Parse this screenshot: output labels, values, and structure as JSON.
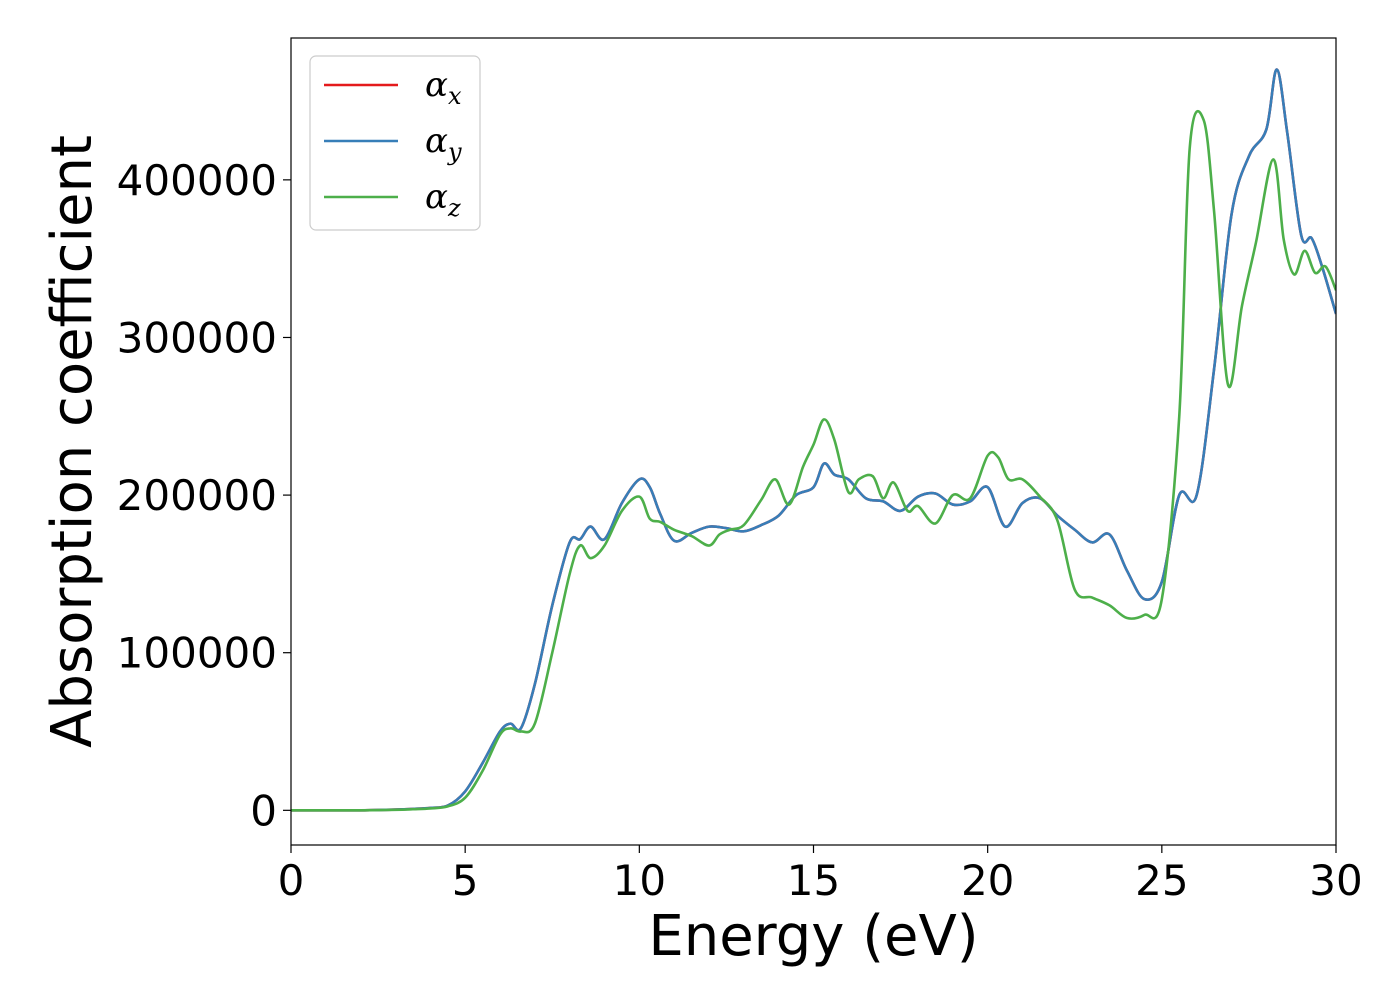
{
  "chart_data": {
    "type": "line",
    "xlabel": "Energy (eV)",
    "ylabel": "Absorption coefficient",
    "xlim": [
      0,
      30
    ],
    "ylim": [
      -22000,
      490000
    ],
    "xticks": [
      0,
      5,
      10,
      15,
      20,
      25,
      30
    ],
    "yticks": [
      0,
      100000,
      200000,
      300000,
      400000
    ],
    "legend_position": "top-left",
    "grid": false,
    "series": [
      {
        "name": "αx",
        "label_main": "α",
        "label_sub": "x",
        "color": "#e41a1c",
        "x": [
          0,
          1,
          2,
          3,
          3.5,
          4,
          4.5,
          5,
          5.5,
          6,
          6.3,
          6.6,
          7,
          7.5,
          8,
          8.3,
          8.6,
          9,
          9.5,
          10,
          10.3,
          10.6,
          11,
          11.5,
          12,
          12.5,
          13,
          13.5,
          14,
          14.5,
          15,
          15.3,
          15.6,
          16,
          16.5,
          17,
          17.5,
          18,
          18.5,
          19,
          19.5,
          20,
          20.5,
          21,
          21.5,
          22,
          22.5,
          23,
          23.5,
          24,
          24.5,
          25,
          25.5,
          26,
          26.5,
          27,
          27.5,
          28,
          28.3,
          28.6,
          29,
          29.3,
          29.6,
          30
        ],
        "y": [
          0,
          0,
          0,
          500,
          900,
          1500,
          3000,
          12000,
          30000,
          50000,
          55000,
          52000,
          80000,
          130000,
          170000,
          172000,
          180000,
          172000,
          195000,
          210000,
          205000,
          188000,
          171000,
          176000,
          180000,
          179000,
          177000,
          181000,
          187000,
          200000,
          205000,
          220000,
          213000,
          210000,
          198000,
          196000,
          190000,
          199000,
          201000,
          194000,
          196000,
          205000,
          180000,
          195000,
          198000,
          187000,
          178000,
          170000,
          175000,
          152000,
          134000,
          145000,
          200000,
          200000,
          280000,
          378000,
          415000,
          432000,
          470000,
          430000,
          365000,
          363000,
          345000,
          315000
        ]
      },
      {
        "name": "αy",
        "label_main": "α",
        "label_sub": "y",
        "color": "#377eb8",
        "x": [
          0,
          1,
          2,
          3,
          3.5,
          4,
          4.5,
          5,
          5.5,
          6,
          6.3,
          6.6,
          7,
          7.5,
          8,
          8.3,
          8.6,
          9,
          9.5,
          10,
          10.3,
          10.6,
          11,
          11.5,
          12,
          12.5,
          13,
          13.5,
          14,
          14.5,
          15,
          15.3,
          15.6,
          16,
          16.5,
          17,
          17.5,
          18,
          18.5,
          19,
          19.5,
          20,
          20.5,
          21,
          21.5,
          22,
          22.5,
          23,
          23.5,
          24,
          24.5,
          25,
          25.5,
          26,
          26.5,
          27,
          27.5,
          28,
          28.3,
          28.6,
          29,
          29.3,
          29.6,
          30
        ],
        "y": [
          0,
          0,
          0,
          500,
          900,
          1500,
          3000,
          12000,
          30000,
          50000,
          55000,
          52000,
          80000,
          130000,
          170000,
          172000,
          180000,
          172000,
          195000,
          210000,
          205000,
          188000,
          171000,
          176000,
          180000,
          179000,
          177000,
          181000,
          187000,
          200000,
          205000,
          220000,
          213000,
          210000,
          198000,
          196000,
          190000,
          199000,
          201000,
          194000,
          196000,
          205000,
          180000,
          195000,
          198000,
          187000,
          178000,
          170000,
          175000,
          152000,
          134000,
          145000,
          200000,
          200000,
          280000,
          378000,
          415000,
          432000,
          470000,
          430000,
          365000,
          363000,
          345000,
          315000
        ]
      },
      {
        "name": "αz",
        "label_main": "α",
        "label_sub": "z",
        "color": "#4daf4a",
        "x": [
          0,
          1,
          2,
          3,
          3.5,
          4,
          4.5,
          5,
          5.5,
          6,
          6.3,
          6.6,
          7,
          7.5,
          8,
          8.3,
          8.6,
          9,
          9.5,
          10,
          10.3,
          10.6,
          11,
          11.5,
          12,
          12.3,
          12.6,
          13,
          13.5,
          13.9,
          14.3,
          14.7,
          15,
          15.3,
          15.6,
          16,
          16.3,
          16.7,
          17,
          17.3,
          17.7,
          18,
          18.5,
          19,
          19.5,
          20,
          20.3,
          20.6,
          21,
          21.5,
          22,
          22.5,
          23,
          23.5,
          24,
          24.5,
          25,
          25.5,
          25.8,
          26.2,
          26.5,
          26.9,
          27.3,
          27.7,
          28.2,
          28.5,
          28.8,
          29.1,
          29.4,
          29.7,
          30
        ],
        "y": [
          0,
          0,
          0,
          300,
          700,
          1200,
          2500,
          8000,
          25000,
          48000,
          52000,
          50000,
          55000,
          100000,
          150000,
          168000,
          160000,
          168000,
          190000,
          199000,
          185000,
          183000,
          178000,
          174000,
          168000,
          175000,
          178000,
          181000,
          197000,
          210000,
          194000,
          218000,
          232000,
          248000,
          235000,
          202000,
          210000,
          212000,
          198000,
          208000,
          190000,
          193000,
          182000,
          200000,
          198000,
          225000,
          224000,
          210000,
          210000,
          199000,
          184000,
          140000,
          135000,
          130000,
          122000,
          124000,
          134000,
          250000,
          420000,
          438000,
          380000,
          270000,
          320000,
          360000,
          413000,
          362000,
          340000,
          355000,
          341000,
          345000,
          330000
        ]
      }
    ]
  }
}
